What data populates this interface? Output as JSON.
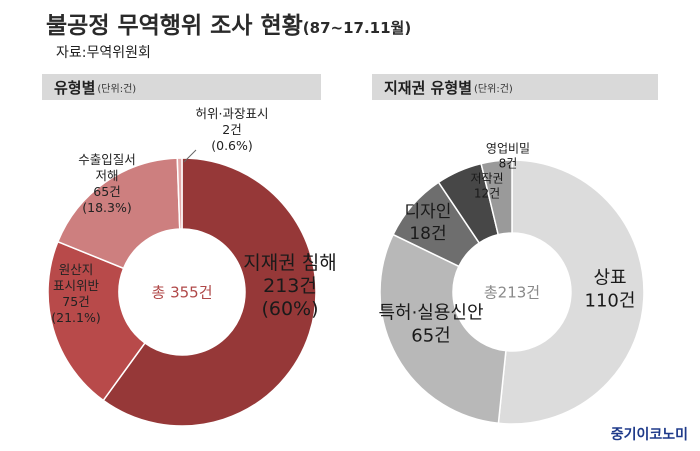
{
  "title": "불공정 무역행위 조사 현황",
  "title_period": "(87~17.11월)",
  "source": "자료:무역위원회",
  "brand": "중기이코노미",
  "chart_data": [
    {
      "type": "pie",
      "title": "유형별",
      "unit_label": "(단위:건)",
      "center_label": "총 355건",
      "total": 355,
      "slices": [
        {
          "lines": [
            "지재권 침해",
            "213건",
            "(60%)"
          ],
          "value": 213,
          "percent": 60,
          "color": "#963838",
          "text_color": "#1a1a1a"
        },
        {
          "lines": [
            "원산지",
            "표시위반",
            "75건",
            "(21.1%)"
          ],
          "value": 75,
          "percent": 21.1,
          "color": "#b84a4a",
          "text_color": "#222222"
        },
        {
          "lines": [
            "수출입질서",
            "저해",
            "65건",
            "(18.3%)"
          ],
          "value": 65,
          "percent": 18.3,
          "color": "#cd7f7f",
          "text_color": "#222222"
        },
        {
          "lines": [
            "허위·과장표시",
            "2건",
            "(0.6%)"
          ],
          "value": 2,
          "percent": 0.6,
          "color": "#e3a8a8",
          "text_color": "#222222"
        }
      ],
      "colors": {
        "center_text": "#b04848"
      }
    },
    {
      "type": "pie",
      "title": "지재권 유형별",
      "unit_label": "(단위:건)",
      "center_label": "총213건",
      "total": 213,
      "slices": [
        {
          "lines": [
            "상표",
            "110건"
          ],
          "value": 110,
          "color": "#dcdcdc",
          "text_color": "#1a1a1a"
        },
        {
          "lines": [
            "특허·실용신안",
            "65건"
          ],
          "value": 65,
          "color": "#b8b8b8",
          "text_color": "#1a1a1a"
        },
        {
          "lines": [
            "디자인",
            "18건"
          ],
          "value": 18,
          "color": "#6e6e6e",
          "text_color": "#1a1a1a"
        },
        {
          "lines": [
            "저작권",
            "12건"
          ],
          "value": 12,
          "color": "#474747",
          "text_color": "#1a1a1a"
        },
        {
          "lines": [
            "영업비밀",
            "8건"
          ],
          "value": 8,
          "color": "#9a9a9a",
          "text_color": "#1a1a1a"
        }
      ],
      "colors": {
        "center_text": "#8a8a8a"
      }
    }
  ]
}
